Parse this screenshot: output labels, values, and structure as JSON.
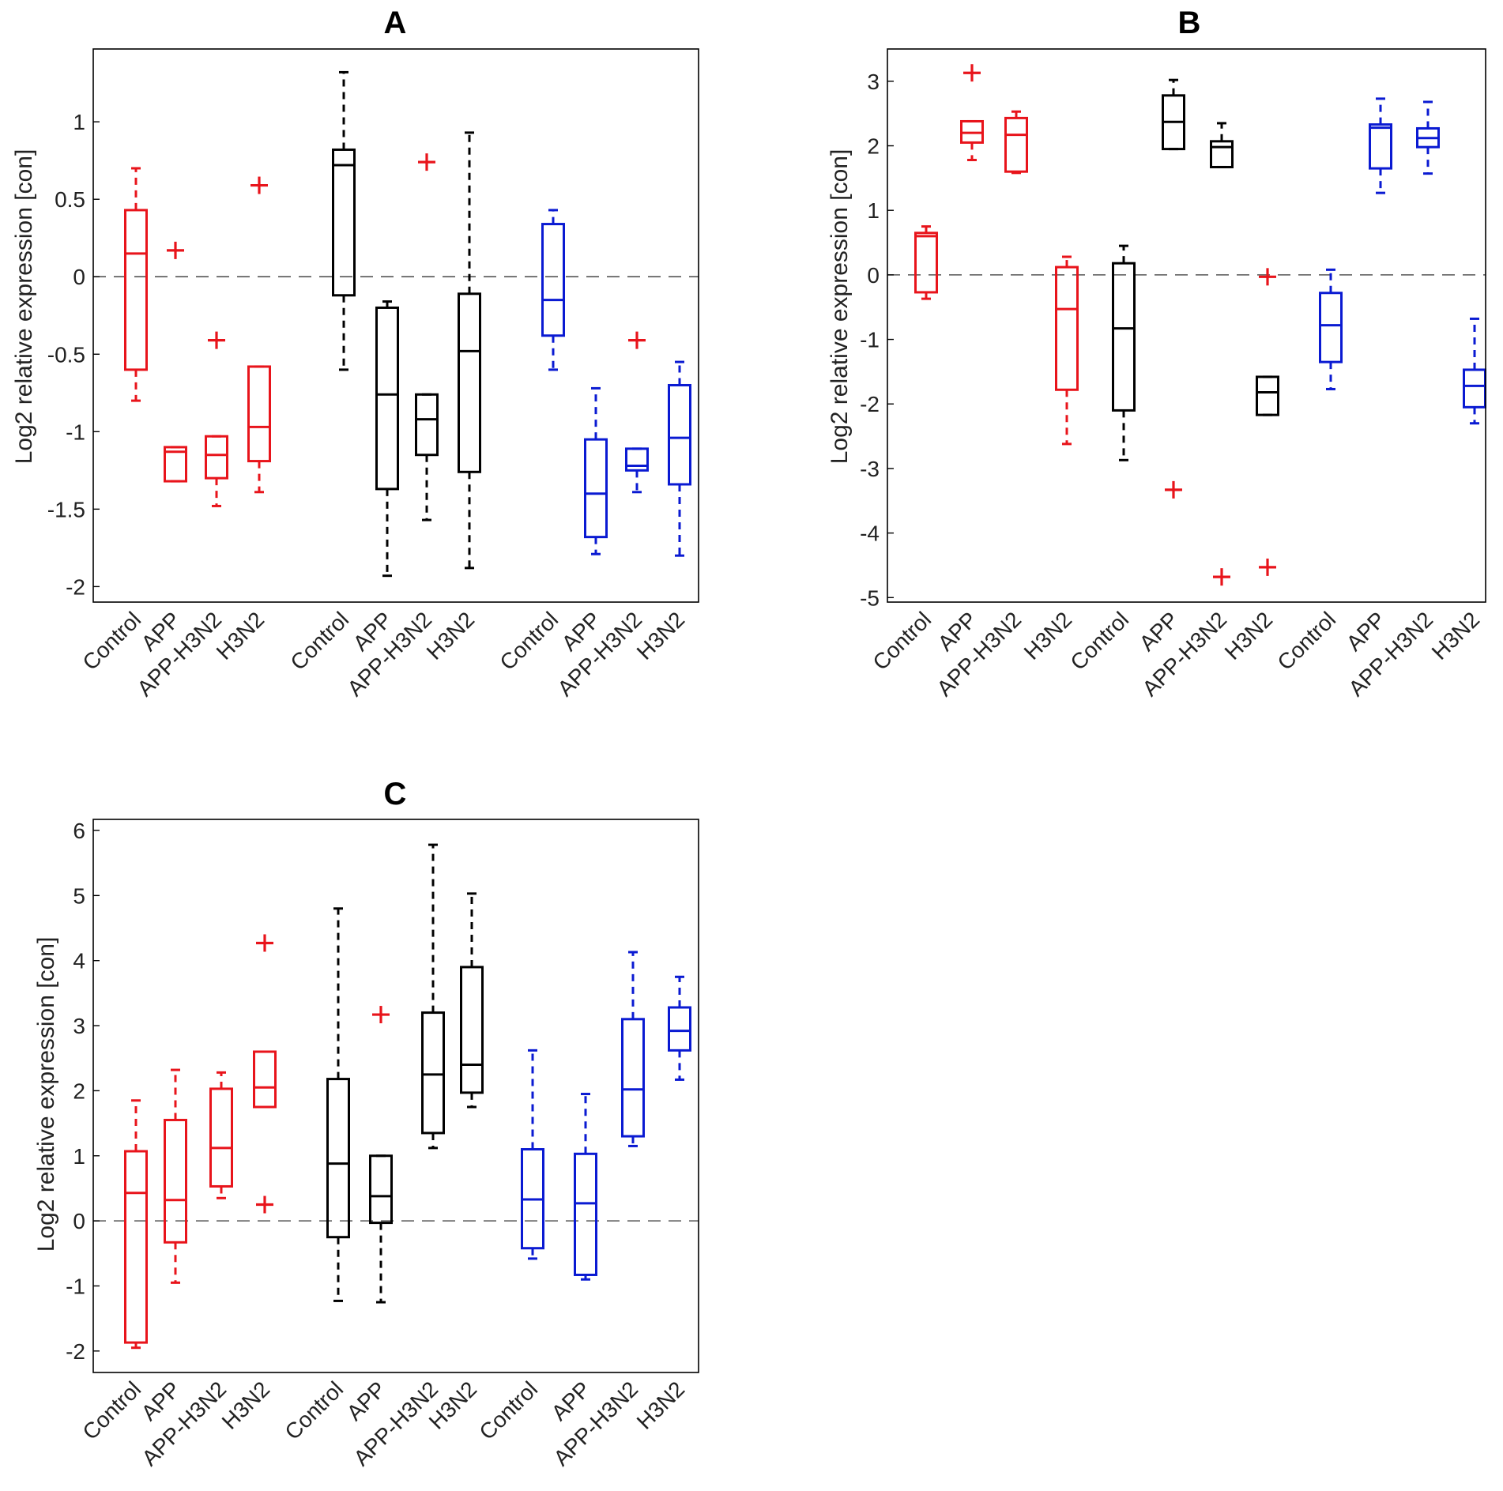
{
  "colors": {
    "group1": "#e8141b",
    "group2": "#000000",
    "group3": "#0a1ad2",
    "axis": "#000000",
    "zero_line": "#555555"
  },
  "chart_data": [
    {
      "type": "box",
      "title": "A",
      "ylabel": "Log2 relative expression [con]",
      "ylim": [
        -2.1,
        1.47
      ],
      "yticks": [
        1,
        0.5,
        0,
        -0.5,
        -1,
        -1.5,
        -2
      ],
      "ytick_labels": [
        "1",
        "0.5",
        "0",
        "-0.5",
        "-1",
        "-1.5",
        "-2"
      ],
      "zero_line": 0,
      "categories": [
        "Control",
        "APP",
        "APP-H3N2",
        "H3N2",
        "Control",
        "APP",
        "APP-H3N2",
        "H3N2",
        "Control",
        "APP",
        "APP-H3N2",
        "H3N2"
      ],
      "groups": [
        {
          "color": "group1",
          "boxes": [
            {
              "whislo": -0.8,
              "q1": -0.6,
              "med": 0.15,
              "q3": 0.43,
              "whishi": 0.7,
              "fliers": []
            },
            {
              "whislo": -1.32,
              "q1": -1.32,
              "med": -1.13,
              "q3": -1.1,
              "whishi": -1.1,
              "fliers": [
                0.17
              ]
            },
            {
              "whislo": -1.48,
              "q1": -1.3,
              "med": -1.15,
              "q3": -1.03,
              "whishi": -1.03,
              "fliers": [
                -0.41
              ]
            },
            {
              "whislo": -1.39,
              "q1": -1.19,
              "med": -0.97,
              "q3": -0.58,
              "whishi": -0.58,
              "fliers": [
                0.59
              ]
            }
          ]
        },
        {
          "color": "group2",
          "boxes": [
            {
              "whislo": -0.6,
              "q1": -0.12,
              "med": 0.72,
              "q3": 0.82,
              "whishi": 1.32,
              "fliers": []
            },
            {
              "whislo": -1.93,
              "q1": -1.37,
              "med": -0.76,
              "q3": -0.2,
              "whishi": -0.16,
              "fliers": []
            },
            {
              "whislo": -1.57,
              "q1": -1.15,
              "med": -0.92,
              "q3": -0.76,
              "whishi": -0.76,
              "fliers": [
                0.74
              ]
            },
            {
              "whislo": -1.88,
              "q1": -1.26,
              "med": -0.48,
              "q3": -0.11,
              "whishi": 0.93,
              "fliers": []
            }
          ]
        },
        {
          "color": "group3",
          "boxes": [
            {
              "whislo": -0.6,
              "q1": -0.38,
              "med": -0.15,
              "q3": 0.34,
              "whishi": 0.43,
              "fliers": []
            },
            {
              "whislo": -1.79,
              "q1": -1.68,
              "med": -1.4,
              "q3": -1.05,
              "whishi": -0.72,
              "fliers": []
            },
            {
              "whislo": -1.39,
              "q1": -1.25,
              "med": -1.22,
              "q3": -1.11,
              "whishi": -1.11,
              "fliers": [
                -0.41
              ]
            },
            {
              "whislo": -1.8,
              "q1": -1.34,
              "med": -1.04,
              "q3": -0.7,
              "whishi": -0.55,
              "fliers": []
            }
          ]
        }
      ]
    },
    {
      "type": "box",
      "title": "B",
      "ylabel": "Log2 relative expression [con]",
      "ylim": [
        -5.07,
        3.5
      ],
      "yticks": [
        3,
        2,
        1,
        0,
        -1,
        -2,
        -3,
        -4,
        -5
      ],
      "ytick_labels": [
        "3",
        "2",
        "1",
        "0",
        "-1",
        "-2",
        "-3",
        "-4",
        "-5"
      ],
      "zero_line": 0,
      "categories": [
        "Control",
        "APP",
        "APP-H3N2",
        "H3N2",
        "Control",
        "APP",
        "APP-H3N2",
        "H3N2",
        "Control",
        "APP",
        "APP-H3N2",
        "H3N2"
      ],
      "groups": [
        {
          "color": "group1",
          "boxes": [
            {
              "whislo": -0.37,
              "q1": -0.27,
              "med": 0.6,
              "q3": 0.65,
              "whishi": 0.75,
              "fliers": []
            },
            {
              "whislo": 1.78,
              "q1": 2.05,
              "med": 2.2,
              "q3": 2.38,
              "whishi": 2.38,
              "fliers": [
                3.13
              ]
            },
            {
              "whislo": 1.58,
              "q1": 1.6,
              "med": 2.17,
              "q3": 2.43,
              "whishi": 2.53,
              "fliers": []
            },
            {
              "whislo": -2.62,
              "q1": -1.78,
              "med": -0.53,
              "q3": 0.12,
              "whishi": 0.28,
              "fliers": []
            }
          ]
        },
        {
          "color": "group2",
          "boxes": [
            {
              "whislo": -2.87,
              "q1": -2.1,
              "med": -0.83,
              "q3": 0.18,
              "whishi": 0.45,
              "fliers": []
            },
            {
              "whislo": 1.95,
              "q1": 1.95,
              "med": 2.37,
              "q3": 2.78,
              "whishi": 3.02,
              "fliers": [
                -3.33
              ]
            },
            {
              "whislo": 1.67,
              "q1": 1.67,
              "med": 1.98,
              "q3": 2.07,
              "whishi": 2.35,
              "fliers": [
                -4.68
              ]
            },
            {
              "whislo": -2.17,
              "q1": -2.17,
              "med": -1.82,
              "q3": -1.58,
              "whishi": -1.58,
              "fliers": [
                -0.03,
                -4.53
              ]
            }
          ]
        },
        {
          "color": "group3",
          "boxes": [
            {
              "whislo": -1.77,
              "q1": -1.35,
              "med": -0.78,
              "q3": -0.28,
              "whishi": 0.08,
              "fliers": []
            },
            {
              "whislo": 1.27,
              "q1": 1.65,
              "med": 2.28,
              "q3": 2.33,
              "whishi": 2.73,
              "fliers": []
            },
            {
              "whislo": 1.57,
              "q1": 1.98,
              "med": 2.12,
              "q3": 2.27,
              "whishi": 2.68,
              "fliers": []
            },
            {
              "whislo": -2.3,
              "q1": -2.05,
              "med": -1.72,
              "q3": -1.47,
              "whishi": -0.68,
              "fliers": []
            }
          ]
        }
      ]
    },
    {
      "type": "box",
      "title": "C",
      "ylabel": "Log2 relative expression [con]",
      "ylim": [
        -2.33,
        6.17
      ],
      "yticks": [
        6,
        5,
        4,
        3,
        2,
        1,
        0,
        -1,
        -2
      ],
      "ytick_labels": [
        "6",
        "5",
        "4",
        "3",
        "2",
        "1",
        "0",
        "-1",
        "-2"
      ],
      "zero_line": 0,
      "categories": [
        "Control",
        "APP",
        "APP-H3N2",
        "H3N2",
        "Control",
        "APP",
        "APP-H3N2",
        "H3N2",
        "Control",
        "APP",
        "APP-H3N2",
        "H3N2"
      ],
      "groups": [
        {
          "color": "group1",
          "boxes": [
            {
              "whislo": -1.95,
              "q1": -1.87,
              "med": 0.43,
              "q3": 1.07,
              "whishi": 1.85,
              "fliers": []
            },
            {
              "whislo": -0.95,
              "q1": -0.33,
              "med": 0.32,
              "q3": 1.55,
              "whishi": 2.32,
              "fliers": []
            },
            {
              "whislo": 0.35,
              "q1": 0.53,
              "med": 1.12,
              "q3": 2.03,
              "whishi": 2.28,
              "fliers": []
            },
            {
              "whislo": 1.75,
              "q1": 1.75,
              "med": 2.05,
              "q3": 2.6,
              "whishi": 2.6,
              "fliers": [
                4.27,
                0.25
              ]
            }
          ]
        },
        {
          "color": "group2",
          "boxes": [
            {
              "whislo": -1.23,
              "q1": -0.25,
              "med": 0.88,
              "q3": 2.18,
              "whishi": 4.8,
              "fliers": []
            },
            {
              "whislo": -1.25,
              "q1": -0.03,
              "med": 0.38,
              "q3": 1.0,
              "whishi": 1.0,
              "fliers": [
                3.17
              ]
            },
            {
              "whislo": 1.12,
              "q1": 1.35,
              "med": 2.25,
              "q3": 3.2,
              "whishi": 5.78,
              "fliers": []
            },
            {
              "whislo": 1.75,
              "q1": 1.97,
              "med": 2.4,
              "q3": 3.9,
              "whishi": 5.03,
              "fliers": []
            }
          ]
        },
        {
          "color": "group3",
          "boxes": [
            {
              "whislo": -0.58,
              "q1": -0.42,
              "med": 0.33,
              "q3": 1.1,
              "whishi": 2.62,
              "fliers": []
            },
            {
              "whislo": -0.9,
              "q1": -0.83,
              "med": 0.27,
              "q3": 1.03,
              "whishi": 1.95,
              "fliers": []
            },
            {
              "whislo": 1.15,
              "q1": 1.3,
              "med": 2.02,
              "q3": 3.1,
              "whishi": 4.13,
              "fliers": []
            },
            {
              "whislo": 2.17,
              "q1": 2.62,
              "med": 2.92,
              "q3": 3.28,
              "whishi": 3.75,
              "fliers": []
            }
          ]
        }
      ]
    }
  ]
}
